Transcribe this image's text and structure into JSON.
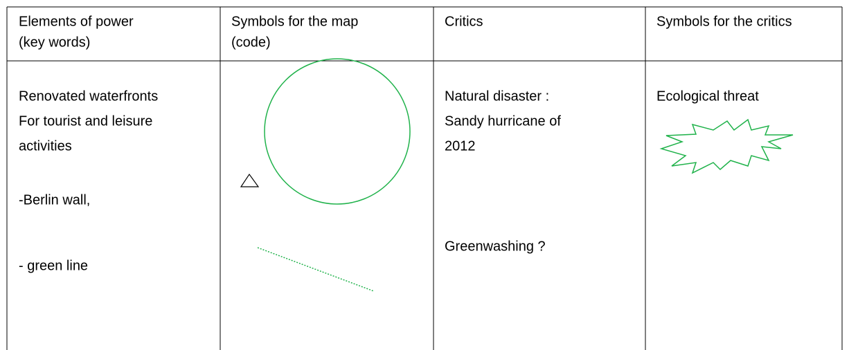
{
  "table": {
    "header": [
      [
        "Elements of power",
        "(key words)"
      ],
      [
        "Symbols for the map",
        "(code)"
      ],
      [
        "Critics"
      ],
      [
        "Symbols for the critics"
      ]
    ],
    "rows": [
      [
        [
          "Renovated waterfronts",
          "For tourist and leisure",
          "activities",
          "-Berlin wall,",
          "- green line"
        ],
        [],
        [
          "Natural disaster :",
          "Sandy hurricane of",
          "2012",
          "Greenwashing ?"
        ],
        [
          "Ecological threat"
        ]
      ]
    ]
  }
}
